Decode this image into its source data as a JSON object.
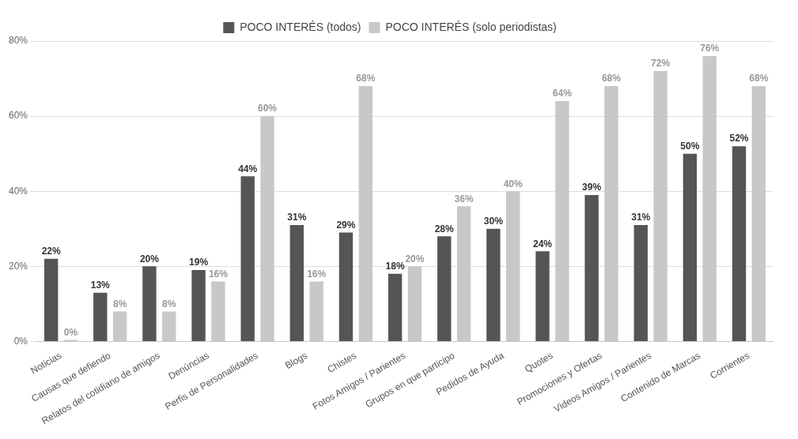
{
  "chart_data": {
    "type": "bar",
    "categories": [
      "Noticias",
      "Causas que defiendo",
      "Relatos del cotidiano de amigos",
      "Denúncias",
      "Perfis de Personalidades",
      "Blogs",
      "Chistes",
      "Fotos Amigos / Parientes",
      "Grupos en que participo",
      "Pedidos de Ayuda",
      "Quotes",
      "Promociones y Ofertas",
      "Videos Amigos / Parientes",
      "Contenido de Marcas",
      "Corrientes"
    ],
    "series": [
      {
        "name": "POCO INTERÉS (todos)",
        "color": "#555555",
        "values": [
          22,
          13,
          20,
          19,
          44,
          31,
          29,
          18,
          28,
          30,
          24,
          39,
          31,
          50,
          52
        ],
        "value_labels": [
          "22%",
          "13%",
          "20%",
          "19%",
          "44%",
          "31%",
          "29%",
          "18%",
          "28%",
          "30%",
          "24%",
          "39%",
          "31%",
          "50%",
          "52%"
        ]
      },
      {
        "name": "POCO INTERÉS (solo periodistas)",
        "color": "#c8c8c8",
        "values": [
          0,
          8,
          8,
          16,
          60,
          16,
          68,
          20,
          36,
          40,
          64,
          68,
          72,
          76,
          68
        ],
        "value_labels": [
          "0%",
          "8%",
          "8%",
          "16%",
          "60%",
          "16%",
          "68%",
          "20%",
          "36%",
          "40%",
          "64%",
          "68%",
          "72%",
          "76%",
          "68%"
        ]
      }
    ],
    "ylim": [
      0,
      80
    ],
    "yticks": [
      {
        "value": 0,
        "label": "0%"
      },
      {
        "value": 20,
        "label": "20%"
      },
      {
        "value": 40,
        "label": "40%"
      },
      {
        "value": 60,
        "label": "60%"
      },
      {
        "value": 80,
        "label": "80%"
      }
    ],
    "grid": "y",
    "legend": "top"
  }
}
